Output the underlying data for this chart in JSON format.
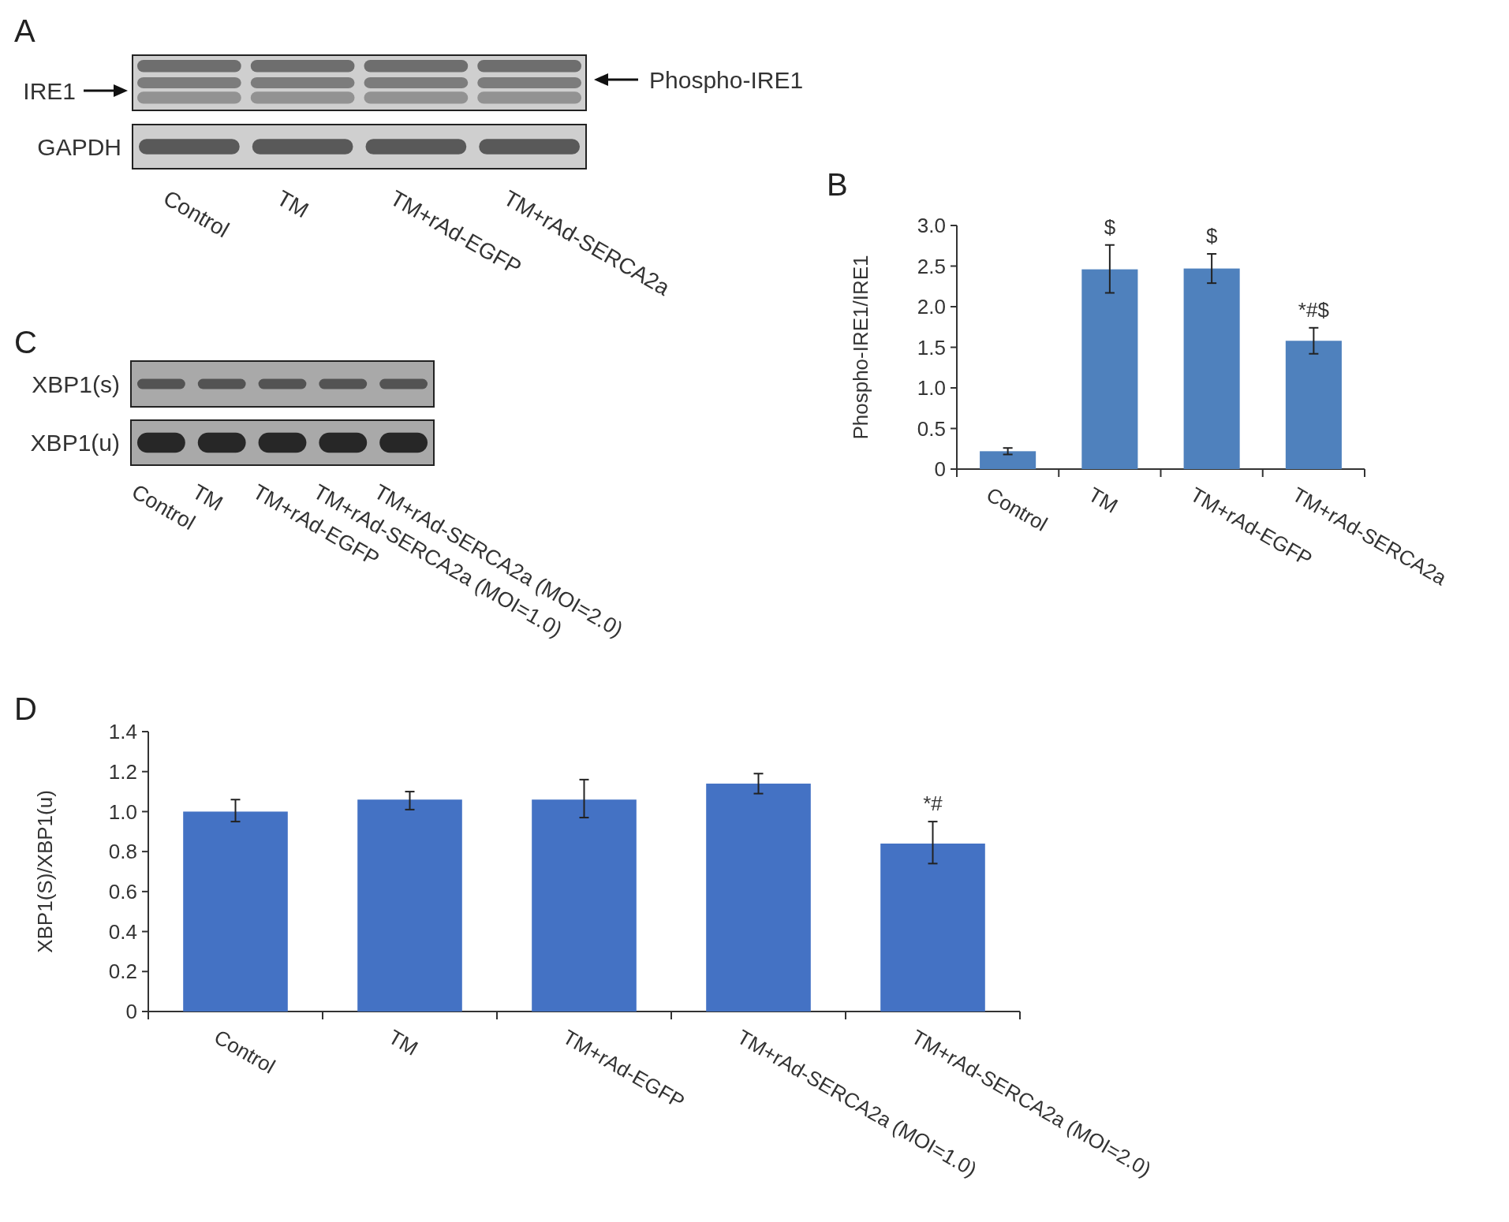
{
  "chart_data": [
    {
      "type": "other",
      "title": "A",
      "categories": [
        "Control",
        "TM",
        "TM+rAd-EGFP",
        "TM+rAd-SERCA2a"
      ],
      "annotations": [
        "IRE1",
        "GAPDH",
        "Phospho-IRE1"
      ]
    },
    {
      "type": "bar",
      "title": "B",
      "ylabel": "Phospho-IRE1/IRE1",
      "categories": [
        "Control",
        "TM",
        "TM+rAd-EGFP",
        "TM+rAd-SERCA2a"
      ],
      "values": [
        0.22,
        2.46,
        2.47,
        1.58
      ],
      "errors": [
        [
          0.18,
          0.26
        ],
        [
          2.17,
          2.76
        ],
        [
          2.29,
          2.65
        ],
        [
          1.42,
          1.74
        ]
      ],
      "color": "#4f81bd",
      "ylim": [
        0,
        3.0
      ],
      "yticks": [
        0,
        {
          "value": 0.5,
          "label": "0.5"
        },
        {
          "value": 1,
          "label": "1.0"
        },
        {
          "value": 1.5,
          "label": "1.5"
        },
        {
          "value": 2,
          "label": "2.0"
        },
        {
          "value": 2.5,
          "label": "2.5"
        },
        {
          "value": 3,
          "label": "3.0"
        }
      ],
      "annotations": [
        "$",
        "$",
        "*#$"
      ]
    },
    {
      "type": "other",
      "title": "C",
      "categories": [
        "Control",
        "TM",
        "TM+rAd-EGFP",
        "TM+rAd-SERCA2a (MOI=1.0)",
        "TM+rAd-SERCA2a (MOI=2.0)"
      ],
      "annotations": [
        "XBP1(s)",
        "XBP1(u)"
      ]
    },
    {
      "type": "bar",
      "title": "D",
      "ylabel": "XBP1(S)/XBP1(u)",
      "categories": [
        "Control",
        "TM",
        "TM+rAd-EGFP",
        "TM+rAd-SERCA2a (MOI=1.0)",
        "TM+rAd-SERCA2a (MOI=2.0)"
      ],
      "values": [
        1.0,
        1.06,
        1.06,
        1.14,
        0.84
      ],
      "errors": [
        [
          0.95,
          1.06
        ],
        [
          1.01,
          1.1
        ],
        [
          0.97,
          1.16
        ],
        [
          1.09,
          1.19
        ],
        [
          0.74,
          0.95
        ]
      ],
      "color": "#4472c4",
      "ylim": [
        0,
        1.4
      ],
      "yticks": [
        0,
        {
          "value": 0.2,
          "label": "0.2"
        },
        {
          "value": 0.4,
          "label": "0.4"
        },
        {
          "value": 0.6,
          "label": "0.6"
        },
        {
          "value": 0.8,
          "label": "0.8"
        },
        {
          "value": 1,
          "label": "1.0"
        },
        {
          "value": 1.2,
          "label": "1.2"
        },
        {
          "value": 1.4,
          "label": "1.4"
        }
      ],
      "annotations": [
        "*#"
      ]
    }
  ]
}
